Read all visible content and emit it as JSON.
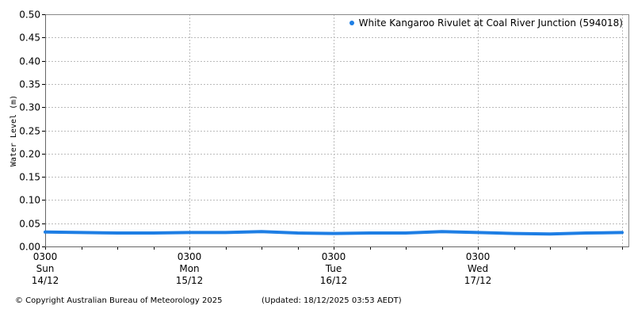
{
  "chart_data": {
    "type": "line",
    "title": "",
    "xlabel": "",
    "ylabel": "Water Level (m)",
    "ylim": [
      0.0,
      0.5
    ],
    "yticks": [
      "0.00",
      "0.05",
      "0.10",
      "0.15",
      "0.20",
      "0.25",
      "0.30",
      "0.35",
      "0.40",
      "0.45",
      "0.50"
    ],
    "xticks": [
      {
        "time": "0300",
        "day": "Sun",
        "date": "14/12"
      },
      {
        "time": "0300",
        "day": "Mon",
        "date": "15/12"
      },
      {
        "time": "0300",
        "day": "Tue",
        "date": "16/12"
      },
      {
        "time": "0300",
        "day": "Wed",
        "date": "17/12"
      }
    ],
    "grid": true,
    "legend_position": "top-right",
    "series": [
      {
        "name": "White Kangaroo Rivulet at Coal River Junction (594018)",
        "color": "#1e7ee4",
        "x_hours_from_sun_0300": [
          0,
          6,
          12,
          18,
          24,
          30,
          36,
          42,
          48,
          54,
          60,
          66,
          72,
          78,
          84,
          90,
          96
        ],
        "values": [
          0.031,
          0.03,
          0.029,
          0.029,
          0.03,
          0.03,
          0.032,
          0.029,
          0.028,
          0.029,
          0.029,
          0.032,
          0.03,
          0.028,
          0.027,
          0.029,
          0.03
        ]
      }
    ]
  },
  "legend": {
    "label": "White Kangaroo Rivulet at Coal River Junction (594018)"
  },
  "footer": {
    "copyright": "© Copyright Australian Bureau of Meteorology 2025",
    "updated": "(Updated: 18/12/2025 03:53 AEDT)"
  }
}
